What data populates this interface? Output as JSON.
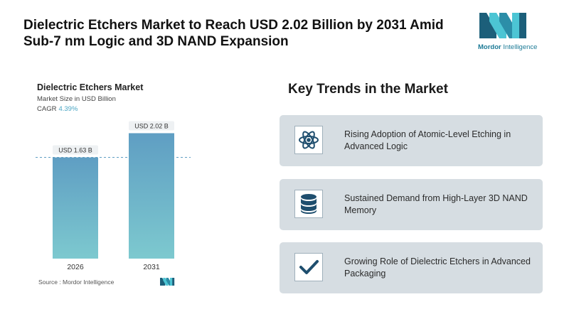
{
  "headline": "Dielectric Etchers Market to Reach USD 2.02 Billion by 2031 Amid Sub-7 nm Logic and 3D NAND Expansion",
  "logo": {
    "word1": "Mordor",
    "word2": "Intelligence"
  },
  "colors": {
    "brand_dark": "#1c5f7a",
    "brand_light": "#4cc5d4",
    "bar_top": "#5f9ec3",
    "bar_bottom": "#7dc9cf",
    "card_bg": "#d6dde2",
    "icon_color": "#1e4e6e"
  },
  "chart_data": {
    "type": "bar",
    "title": "Dielectric Etchers Market",
    "subtitle": "Market Size in USD Billion",
    "cagr_label": "CAGR",
    "cagr_value": "4.39%",
    "categories": [
      "2026",
      "2031"
    ],
    "values": [
      1.63,
      2.02
    ],
    "data_labels": [
      "USD 1.63 B",
      "USD 2.02 B"
    ],
    "ylim": [
      0,
      2.3
    ],
    "reference_line": 1.63,
    "grid": false,
    "source": "Source : Mordor Intelligence"
  },
  "trends": {
    "title": "Key Trends in the Market",
    "items": [
      {
        "icon": "atom-icon",
        "text": "Rising Adoption of Atomic-Level Etching in Advanced Logic"
      },
      {
        "icon": "database-icon",
        "text": "Sustained Demand from High-Layer 3D NAND Memory"
      },
      {
        "icon": "checkmark-icon",
        "text": "Growing Role of Dielectric Etchers in Advanced Packaging"
      }
    ]
  }
}
